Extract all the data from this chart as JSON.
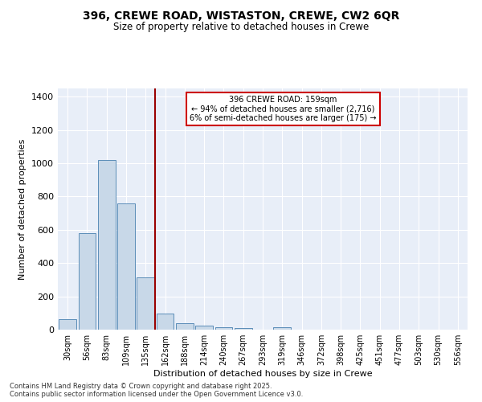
{
  "title": "396, CREWE ROAD, WISTASTON, CREWE, CW2 6QR",
  "subtitle": "Size of property relative to detached houses in Crewe",
  "xlabel": "Distribution of detached houses by size in Crewe",
  "ylabel": "Number of detached properties",
  "categories": [
    "30sqm",
    "56sqm",
    "83sqm",
    "109sqm",
    "135sqm",
    "162sqm",
    "188sqm",
    "214sqm",
    "240sqm",
    "267sqm",
    "293sqm",
    "319sqm",
    "346sqm",
    "372sqm",
    "398sqm",
    "425sqm",
    "451sqm",
    "477sqm",
    "503sqm",
    "530sqm",
    "556sqm"
  ],
  "values": [
    65,
    580,
    1020,
    760,
    315,
    95,
    40,
    25,
    15,
    10,
    0,
    15,
    0,
    0,
    0,
    0,
    0,
    0,
    0,
    0,
    0
  ],
  "bar_color": "#c8d8e8",
  "bar_edge_color": "#5b8db8",
  "vline_color": "#990000",
  "annotation_text": "396 CREWE ROAD: 159sqm\n← 94% of detached houses are smaller (2,716)\n6% of semi-detached houses are larger (175) →",
  "annotation_box_color": "#ffffff",
  "annotation_box_edge": "#cc0000",
  "ylim": [
    0,
    1450
  ],
  "yticks": [
    0,
    200,
    400,
    600,
    800,
    1000,
    1200,
    1400
  ],
  "background_color": "#e8eef8",
  "footer_line1": "Contains HM Land Registry data © Crown copyright and database right 2025.",
  "footer_line2": "Contains public sector information licensed under the Open Government Licence v3.0."
}
